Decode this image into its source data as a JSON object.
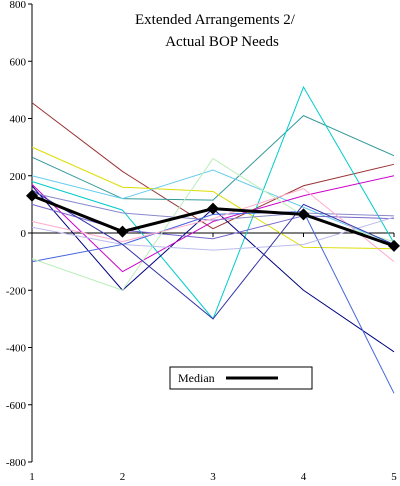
{
  "chart_data": {
    "type": "line",
    "title_lines": [
      "Extended Arrangements  2/",
      "Actual BOP Needs"
    ],
    "xlabel": "",
    "ylabel": "",
    "x": [
      1,
      2,
      3,
      4,
      5
    ],
    "x_tick_labels": [
      "1",
      "2",
      "3",
      "4",
      "5"
    ],
    "ylim": [
      -800,
      800
    ],
    "y_ticks": [
      -800,
      -600,
      -400,
      -200,
      0,
      200,
      400,
      600,
      800
    ],
    "y_tick_labels": [
      "-800",
      "-600",
      "-400",
      "-200",
      "0",
      "200",
      "400",
      "600",
      "800"
    ],
    "grid": false,
    "legend": {
      "position": "bottom-center",
      "entries": [
        "Median"
      ]
    },
    "series": [
      {
        "name": "",
        "color": "#993333",
        "values": [
          455,
          215,
          15,
          165,
          240
        ]
      },
      {
        "name": "",
        "color": "#339999",
        "values": [
          265,
          120,
          115,
          410,
          270
        ]
      },
      {
        "name": "",
        "color": "#dddd00",
        "values": [
          300,
          160,
          145,
          -50,
          -55
        ]
      },
      {
        "name": "",
        "color": "#66ccee",
        "values": [
          200,
          120,
          220,
          90,
          -40
        ]
      },
      {
        "name": "",
        "color": "#00cccc",
        "values": [
          180,
          80,
          -300,
          510,
          -35
        ]
      },
      {
        "name": "",
        "color": "#000080",
        "values": [
          165,
          -200,
          85,
          -200,
          -415
        ]
      },
      {
        "name": "",
        "color": "#cc00cc",
        "values": [
          170,
          -135,
          40,
          130,
          200
        ]
      },
      {
        "name": "",
        "color": "#8888cc",
        "values": [
          140,
          70,
          45,
          70,
          60
        ]
      },
      {
        "name": "",
        "color": "#4466dd",
        "values": [
          -100,
          -40,
          65,
          75,
          -560
        ]
      },
      {
        "name": "",
        "color": "#7766cc",
        "values": [
          100,
          10,
          -20,
          60,
          50
        ]
      },
      {
        "name": "",
        "color": "#ffaacc",
        "values": [
          40,
          -30,
          50,
          155,
          -100
        ]
      },
      {
        "name": "",
        "color": "#bbeebb",
        "values": [
          -90,
          -200,
          260,
          60,
          -30
        ]
      },
      {
        "name": "",
        "color": "#bbbbee",
        "values": [
          20,
          -40,
          -60,
          -40,
          55
        ]
      },
      {
        "name": "",
        "color": "#3333aa",
        "values": [
          150,
          -40,
          -300,
          100,
          -40
        ]
      }
    ],
    "median": {
      "name": "Median",
      "color": "#000000",
      "values": [
        130,
        5,
        85,
        65,
        -45
      ]
    }
  }
}
